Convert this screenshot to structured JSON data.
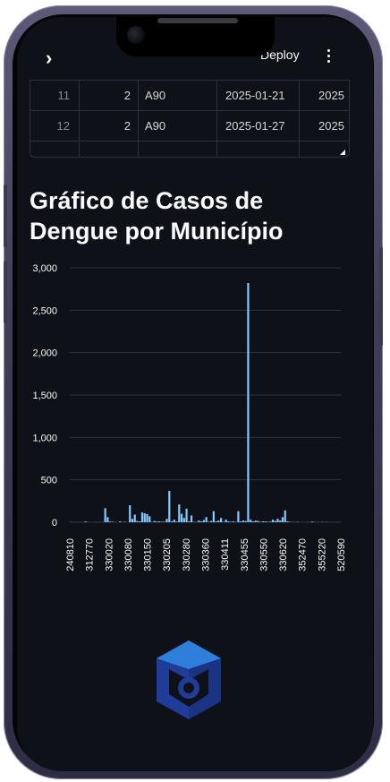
{
  "topbar": {
    "deploy_label": "Deploy"
  },
  "table": {
    "rows": [
      {
        "index": "11",
        "col1": "2",
        "col2": "A90",
        "col3": "2025-01-21",
        "col4": "2025"
      },
      {
        "index": "12",
        "col1": "2",
        "col2": "A90",
        "col3": "2025-01-27",
        "col4": "2025"
      }
    ]
  },
  "chart_title": "Gráfico de Casos de Dengue por Município",
  "colors": {
    "background": "#0e1117",
    "bar": "#83c9ff",
    "grid": "#31333f",
    "text": "#fafafa"
  },
  "chart_data": {
    "type": "bar",
    "title": "Gráfico de Casos de Dengue por Município",
    "xlabel": "",
    "ylabel": "",
    "ylim": [
      0,
      3000
    ],
    "yticks": [
      0,
      500,
      1000,
      1500,
      2000,
      2500,
      3000
    ],
    "ytick_labels": [
      "0",
      "500",
      "1,000",
      "1,500",
      "2,000",
      "2,500",
      "3,000"
    ],
    "xtick_labels": [
      "240810",
      "312770",
      "330020",
      "330080",
      "330150",
      "330205",
      "330280",
      "330360",
      "330411",
      "330455",
      "330550",
      "330620",
      "352470",
      "355220",
      "520590"
    ],
    "grid": true,
    "values": [
      2,
      0,
      1,
      0,
      1,
      0,
      9,
      1,
      0,
      0,
      2,
      1,
      0,
      0,
      165,
      60,
      8,
      5,
      2,
      0,
      10,
      2,
      4,
      0,
      200,
      40,
      90,
      15,
      10,
      115,
      105,
      95,
      70,
      3,
      15,
      8,
      10,
      5,
      6,
      40,
      370,
      10,
      30,
      8,
      210,
      100,
      50,
      160,
      10,
      80,
      5,
      3,
      20,
      10,
      25,
      60,
      5,
      15,
      130,
      10,
      20,
      50,
      5,
      30,
      10,
      5,
      10,
      3,
      130,
      10,
      20,
      15,
      2820,
      30,
      10,
      20,
      15,
      5,
      10,
      10,
      5,
      8,
      30,
      15,
      40,
      20,
      60,
      140,
      10,
      5,
      2,
      1,
      3,
      0,
      1,
      0,
      2,
      1,
      8,
      2,
      1,
      0,
      3,
      1,
      2,
      0,
      1,
      0,
      1,
      0
    ]
  }
}
